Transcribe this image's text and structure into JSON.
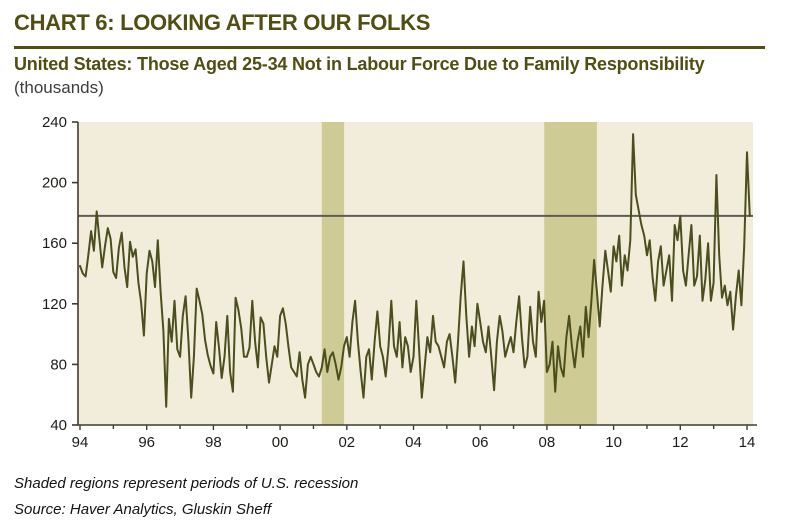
{
  "header": {
    "title": "CHART 6: LOOKING AFTER OUR FOLKS",
    "subtitle": "United States: Those Aged 25-34 Not in Labour Force Due to Family Responsibility",
    "unit": "(thousands)"
  },
  "footer": {
    "note": "Shaded regions represent periods of U.S. recession",
    "source": "Source: Haver Analytics, Gluskin Sheff"
  },
  "colors": {
    "title_olive": "#504e11",
    "plot_background": "#f2edda",
    "recession_band": "#cfcb95",
    "data_line": "#4b4f1d",
    "reference_line": "#5f5b52",
    "axis": "#3f3b33",
    "tick_label": "#1d1c18",
    "page_background": "#ffffff"
  },
  "chart_data": {
    "type": "line",
    "title": "United States: Those Aged 25-34 Not in Labour Force Due to Family Responsibility",
    "ylabel": "thousands",
    "xlabel": "",
    "frequency": "monthly",
    "x_start_year": 1994,
    "x_end": "2014-02",
    "ylim": [
      40,
      240
    ],
    "y_ticks": [
      240,
      200,
      160,
      120,
      80,
      40
    ],
    "x_tick_years": [
      1994,
      1996,
      1998,
      2000,
      2002,
      2004,
      2006,
      2008,
      2010,
      2012,
      2014
    ],
    "x_tick_labels": [
      "94",
      "96",
      "98",
      "00",
      "02",
      "04",
      "06",
      "08",
      "10",
      "12",
      "14"
    ],
    "grid": false,
    "legend": "none",
    "reference_line_value": 178,
    "recession_bands_years": [
      [
        2001.25,
        2001.92
      ],
      [
        2007.92,
        2009.5
      ]
    ],
    "values": [
      145,
      140,
      138,
      152,
      168,
      155,
      181,
      162,
      144,
      158,
      170,
      163,
      141,
      137,
      157,
      167,
      144,
      131,
      161,
      151,
      156,
      134,
      121,
      99,
      140,
      155,
      148,
      131,
      162,
      128,
      102,
      52,
      110,
      95,
      122,
      90,
      85,
      112,
      125,
      96,
      58,
      85,
      130,
      122,
      113,
      96,
      86,
      79,
      74,
      108,
      91,
      71,
      85,
      112,
      75,
      62,
      124,
      116,
      104,
      85,
      85,
      91,
      122,
      95,
      78,
      111,
      107,
      85,
      68,
      80,
      92,
      85,
      112,
      117,
      107,
      92,
      78,
      75,
      72,
      88,
      70,
      58,
      80,
      85,
      80,
      75,
      72,
      78,
      90,
      75,
      85,
      88,
      80,
      70,
      78,
      92,
      98,
      85,
      108,
      122,
      95,
      75,
      58,
      85,
      90,
      70,
      95,
      115,
      92,
      85,
      72,
      92,
      122,
      92,
      85,
      108,
      78,
      98,
      92,
      75,
      85,
      122,
      90,
      58,
      78,
      98,
      88,
      112,
      95,
      92,
      85,
      78,
      95,
      100,
      85,
      68,
      95,
      125,
      148,
      112,
      85,
      105,
      92,
      120,
      108,
      95,
      88,
      105,
      85,
      63,
      95,
      112,
      102,
      85,
      92,
      98,
      88,
      108,
      125,
      98,
      78,
      85,
      118,
      95,
      85,
      128,
      108,
      122,
      75,
      80,
      95,
      62,
      92,
      78,
      72,
      98,
      112,
      92,
      78,
      95,
      105,
      85,
      118,
      98,
      122,
      149,
      128,
      105,
      132,
      155,
      142,
      128,
      158,
      148,
      165,
      132,
      152,
      142,
      162,
      232,
      192,
      182,
      172,
      165,
      152,
      162,
      138,
      122,
      148,
      158,
      132,
      142,
      152,
      122,
      172,
      162,
      178,
      142,
      132,
      152,
      172,
      132,
      138,
      165,
      122,
      136,
      160,
      122,
      134,
      205,
      152,
      124,
      132,
      119,
      128,
      103,
      125,
      142,
      119,
      158,
      220,
      178
    ]
  }
}
